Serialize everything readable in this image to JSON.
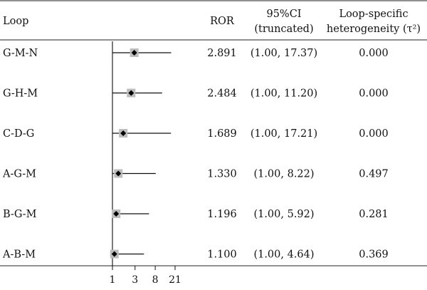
{
  "table": {
    "headers": {
      "loop": "Loop",
      "ror": "ROR",
      "ci_line1": "95%CI",
      "ci_line2": "(truncated)",
      "het_line1": "Loop-specific",
      "het_line2": "heterogeneity (τ²)"
    }
  },
  "chart_data": {
    "type": "forest",
    "scale": "log",
    "reference_line": 1,
    "x_ticks": [
      1,
      3,
      8,
      21
    ],
    "x_tick_labels": [
      "1",
      "3",
      "8",
      "21"
    ],
    "xlim": [
      1,
      21
    ],
    "rows": [
      {
        "loop": "G-M-N",
        "ror": 2.891,
        "ror_text": "2.891",
        "ci_low": 1.0,
        "ci_high": 17.37,
        "ci_text": "(1.00, 17.37)",
        "tau2": "0.000"
      },
      {
        "loop": "G-H-M",
        "ror": 2.484,
        "ror_text": "2.484",
        "ci_low": 1.0,
        "ci_high": 11.2,
        "ci_text": "(1.00, 11.20)",
        "tau2": "0.000"
      },
      {
        "loop": "C-D-G",
        "ror": 1.689,
        "ror_text": "1.689",
        "ci_low": 1.0,
        "ci_high": 17.21,
        "ci_text": "(1.00, 17.21)",
        "tau2": "0.000"
      },
      {
        "loop": "A-G-M",
        "ror": 1.33,
        "ror_text": "1.330",
        "ci_low": 1.0,
        "ci_high": 8.22,
        "ci_text": "(1.00, 8.22)",
        "tau2": "0.497"
      },
      {
        "loop": "B-G-M",
        "ror": 1.196,
        "ror_text": "1.196",
        "ci_low": 1.0,
        "ci_high": 5.92,
        "ci_text": "(1.00, 5.92)",
        "tau2": "0.281"
      },
      {
        "loop": "A-B-M",
        "ror": 1.1,
        "ror_text": "1.100",
        "ci_low": 1.0,
        "ci_high": 4.64,
        "ci_text": "(1.00, 4.64)",
        "tau2": "0.369"
      }
    ]
  }
}
